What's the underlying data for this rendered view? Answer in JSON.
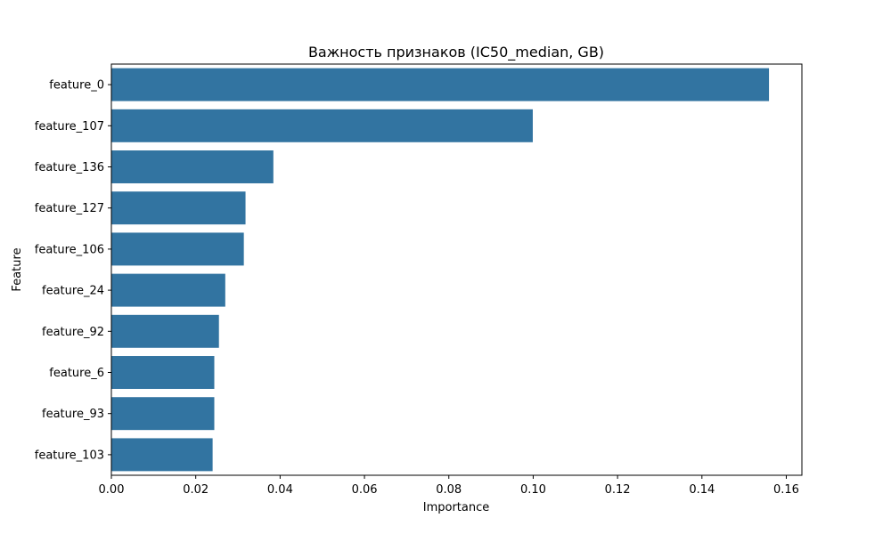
{
  "chart_data": {
    "type": "bar",
    "orientation": "horizontal",
    "title": "Важность признаков (IC50_median, GB)",
    "xlabel": "Importance",
    "ylabel": "Feature",
    "categories": [
      "feature_0",
      "feature_107",
      "feature_136",
      "feature_127",
      "feature_106",
      "feature_24",
      "feature_92",
      "feature_6",
      "feature_93",
      "feature_103"
    ],
    "values": [
      0.1559,
      0.0999,
      0.0384,
      0.0318,
      0.0314,
      0.027,
      0.0255,
      0.0244,
      0.0244,
      0.024
    ],
    "xlim": [
      0,
      0.1637
    ],
    "xticks": [
      0.0,
      0.02,
      0.04,
      0.06,
      0.08,
      0.1,
      0.12,
      0.14,
      0.16
    ],
    "xtick_labels": [
      "0.00",
      "0.02",
      "0.04",
      "0.06",
      "0.08",
      "0.10",
      "0.12",
      "0.14",
      "0.16"
    ],
    "grid": false,
    "bar_color": "#3274a1"
  }
}
